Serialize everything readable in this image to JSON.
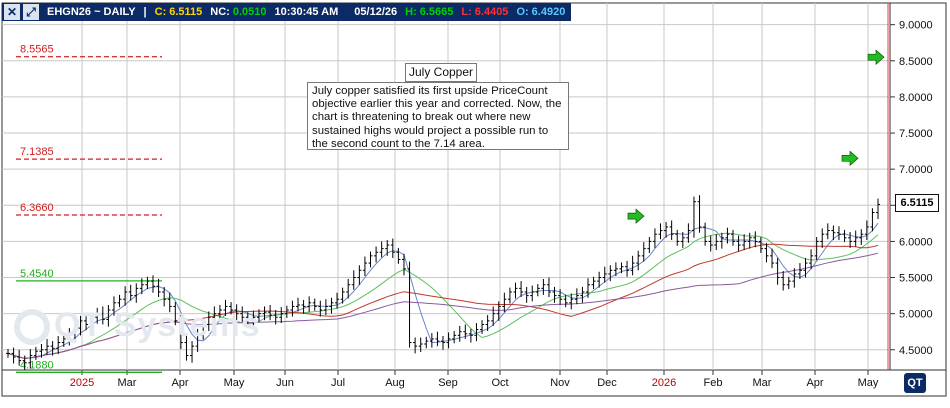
{
  "header": {
    "symbol": "EHGN26 ~ DAILY",
    "sep": "|",
    "close_label": "C:",
    "close": "6.5115",
    "nc_label": "NC:",
    "nc": "0.0510",
    "time": "10:30:45 AM",
    "date": "05/12/26",
    "high_label": "H:",
    "high": "6.5665",
    "low_label": "L:",
    "low": "6.4405",
    "open_label": "O:",
    "open": "6.4920"
  },
  "annotation": {
    "title": "July Copper",
    "text": "July copper satisfied its first upside PriceCount objective earlier this year and corrected.  Now, the chart is threatening to break out where new sustained highs would project a possible run to the second count to the 7.14 area."
  },
  "watermark": "QT Systems",
  "logo": "QT",
  "colors": {
    "header_bg": "#0b2a66",
    "close": "#ffd400",
    "change": "#00d000",
    "high": "#00d000",
    "low": "#ff3030",
    "open": "#5cc8ff",
    "objective_red": "#d02020",
    "objective_green": "#20b020",
    "bars": "#000000",
    "ma_blue": "#6a86c8",
    "ma_green": "#5fbf5f",
    "ma_red": "#c0392b",
    "ma_purple": "#8a5a9e",
    "arrow_green": "#22bb22"
  },
  "chart_data": {
    "type": "ohlc",
    "ylim": [
      4.22,
      9.3
    ],
    "yticks": [
      "4.5000",
      "5.0000",
      "5.5000",
      "6.0000",
      "6.5000",
      "7.0000",
      "7.5000",
      "8.0000",
      "8.5000",
      "9.0000"
    ],
    "xlabels": [
      "2025",
      "Mar",
      "Apr",
      "May",
      "Jun",
      "Jul",
      "Aug",
      "Sep",
      "Oct",
      "Nov",
      "Dec",
      "2026",
      "Feb",
      "Mar",
      "Apr",
      "May"
    ],
    "last_price": "6.5115",
    "levels": [
      {
        "label": "8.5565",
        "value": 8.5565,
        "color": "red",
        "style": "dashed"
      },
      {
        "label": "7.1385",
        "value": 7.1385,
        "color": "red",
        "style": "dashed"
      },
      {
        "label": "6.3660",
        "value": 6.366,
        "color": "red",
        "style": "dashed"
      },
      {
        "label": "5.4540",
        "value": 5.454,
        "color": "green",
        "style": "solid"
      },
      {
        "label": "4.1880",
        "value": 4.188,
        "color": "green",
        "style": "solid"
      }
    ],
    "closes": [
      4.45,
      4.4,
      4.35,
      4.32,
      4.42,
      4.48,
      4.5,
      4.55,
      4.52,
      4.6,
      4.65,
      4.72,
      4.8,
      4.9,
      4.85,
      4.95,
      5.0,
      4.92,
      5.05,
      5.15,
      5.2,
      5.3,
      5.25,
      5.35,
      5.4,
      5.45,
      5.38,
      5.3,
      5.2,
      5.1,
      4.9,
      4.6,
      4.42,
      4.55,
      4.7,
      4.85,
      4.95,
      5.0,
      5.05,
      5.1,
      5.05,
      5.0,
      4.95,
      4.92,
      4.95,
      5.0,
      5.02,
      4.98,
      4.95,
      5.0,
      5.05,
      5.1,
      5.12,
      5.1,
      5.15,
      5.1,
      5.05,
      5.1,
      5.15,
      5.2,
      5.3,
      5.4,
      5.5,
      5.6,
      5.7,
      5.8,
      5.85,
      5.9,
      5.95,
      5.85,
      5.75,
      5.62,
      4.6,
      4.55,
      4.58,
      4.62,
      4.65,
      4.62,
      4.6,
      4.65,
      4.7,
      4.75,
      4.72,
      4.7,
      4.78,
      4.85,
      4.9,
      5.0,
      5.1,
      5.2,
      5.3,
      5.35,
      5.3,
      5.25,
      5.3,
      5.35,
      5.4,
      5.3,
      5.25,
      5.2,
      5.15,
      5.2,
      5.25,
      5.3,
      5.4,
      5.45,
      5.5,
      5.55,
      5.6,
      5.62,
      5.65,
      5.6,
      5.7,
      5.8,
      5.9,
      6.0,
      6.1,
      6.15,
      6.2,
      6.1,
      6.0,
      6.05,
      6.15,
      6.55,
      6.2,
      6.0,
      5.95,
      6.0,
      6.05,
      6.1,
      6.0,
      5.95,
      6.0,
      6.05,
      6.0,
      5.9,
      5.8,
      5.7,
      5.5,
      5.4,
      5.45,
      5.55,
      5.6,
      5.7,
      5.8,
      6.0,
      6.1,
      6.15,
      6.12,
      6.1,
      6.05,
      6.0,
      6.05,
      6.1,
      6.2,
      6.4,
      6.5115
    ],
    "markers": [
      {
        "kind": "arrow-right",
        "value": 6.35,
        "month": "Dec"
      },
      {
        "kind": "arrow-right",
        "value": 7.15,
        "month": "May"
      },
      {
        "kind": "arrow-right",
        "value": 8.55,
        "month": "May"
      }
    ]
  }
}
